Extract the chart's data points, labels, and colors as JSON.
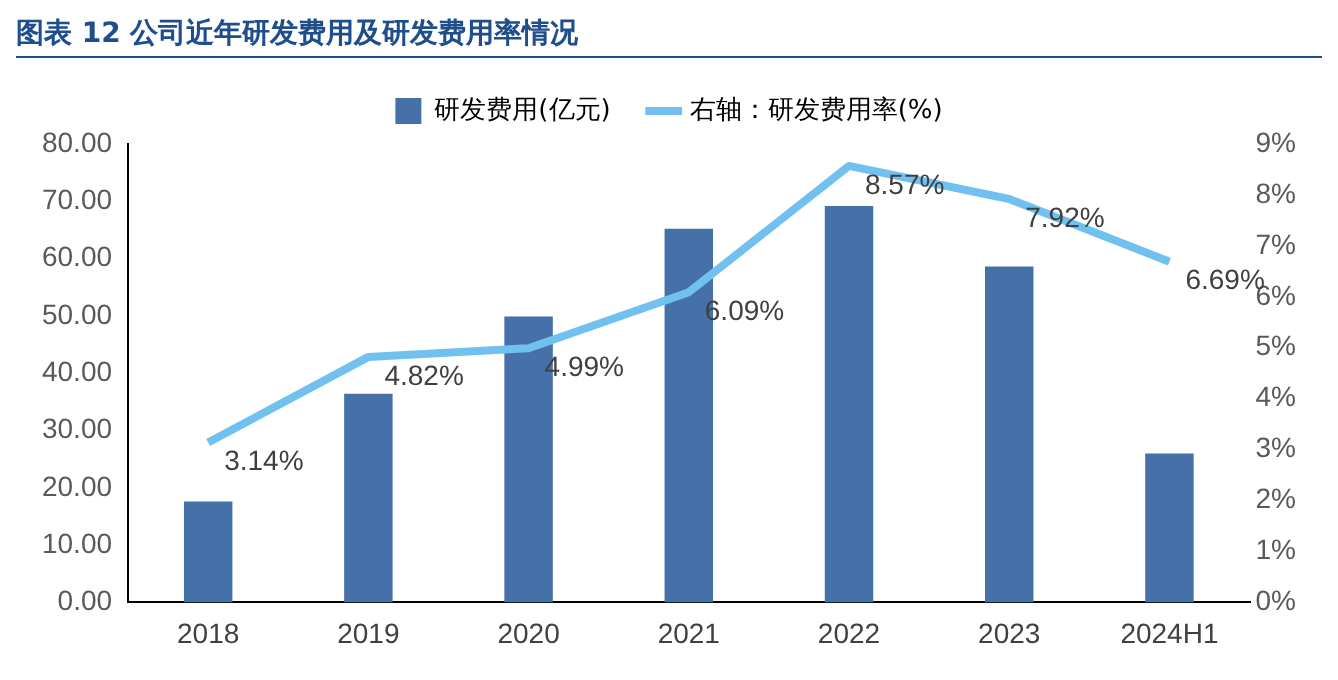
{
  "chart_data": {
    "type": "bar",
    "title": "图表 12 公司近年研发费用及研发费用率情况",
    "categories": [
      "2018",
      "2019",
      "2020",
      "2021",
      "2022",
      "2023",
      "2024H1"
    ],
    "series": [
      {
        "name": "研发费用(亿元)",
        "color": "#4571a8",
        "values": [
          17.6,
          36.4,
          49.9,
          65.2,
          69.2,
          58.6,
          26.0
        ]
      },
      {
        "name": "右轴：研发费用率(%)",
        "type": "line",
        "axis": "y2",
        "color": "#71c1f0",
        "values": [
          3.14,
          4.82,
          4.99,
          6.09,
          8.57,
          7.92,
          6.69
        ],
        "value_labels": [
          "3.14%",
          "4.82%",
          "4.99%",
          "6.09%",
          "8.57%",
          "7.92%",
          "6.69%"
        ]
      }
    ],
    "ylim": [
      0,
      80
    ],
    "yticks": [
      {
        "value": 0,
        "label": "0.00"
      },
      {
        "value": 10,
        "label": "10.00"
      },
      {
        "value": 20,
        "label": "20.00"
      },
      {
        "value": 30,
        "label": "30.00"
      },
      {
        "value": 40,
        "label": "40.00"
      },
      {
        "value": 50,
        "label": "50.00"
      },
      {
        "value": 60,
        "label": "60.00"
      },
      {
        "value": 70,
        "label": "70.00"
      },
      {
        "value": 80,
        "label": "80.00"
      }
    ],
    "y2lim": [
      0,
      9
    ],
    "y2ticks": [
      {
        "value": 0,
        "label": "0%"
      },
      {
        "value": 1,
        "label": "1%"
      },
      {
        "value": 2,
        "label": "2%"
      },
      {
        "value": 3,
        "label": "3%"
      },
      {
        "value": 4,
        "label": "4%"
      },
      {
        "value": 5,
        "label": "5%"
      },
      {
        "value": 6,
        "label": "6%"
      },
      {
        "value": 7,
        "label": "7%"
      },
      {
        "value": 8,
        "label": "8%"
      },
      {
        "value": 9,
        "label": "9%"
      }
    ],
    "legend": "top",
    "grid": false,
    "marker": "none"
  }
}
